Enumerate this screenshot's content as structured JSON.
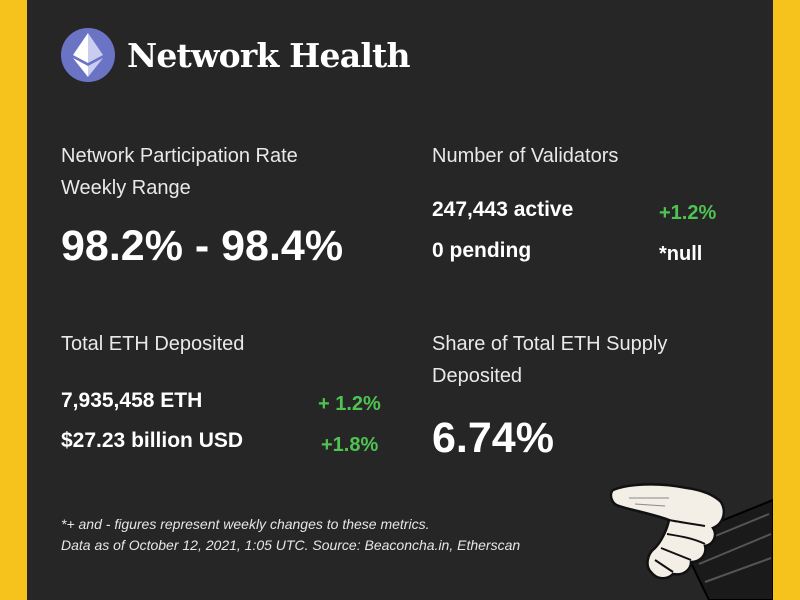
{
  "header": {
    "title": "Network Health",
    "logo_icon": "ethereum-icon"
  },
  "participation": {
    "label_line1": "Network Participation Rate",
    "label_line2": "Weekly Range",
    "value": "98.2% - 98.4%"
  },
  "validators": {
    "label": "Number of Validators",
    "active": "247,443 active",
    "active_change": "+1.2%",
    "pending": "0 pending",
    "pending_change": "*null"
  },
  "deposited": {
    "label": "Total ETH Deposited",
    "eth": "7,935,458 ETH",
    "eth_change": "+ 1.2%",
    "usd": "$27.23 billion USD",
    "usd_change": "+1.8%"
  },
  "share": {
    "label_line1": "Share of Total ETH Supply",
    "label_line2": "Deposited",
    "value": "6.74%"
  },
  "footnote": {
    "line1": "*+ and - figures represent weekly changes to these metrics.",
    "line2": "Data as of October 12, 2021, 1:05 UTC. Source: Beaconcha.in, Etherscan"
  },
  "illustration": {
    "icon": "pointing-hand-icon"
  },
  "colors": {
    "background": "#f6c21c",
    "panel": "#262626",
    "positive": "#4fc352",
    "logo": "#6b74c4"
  }
}
